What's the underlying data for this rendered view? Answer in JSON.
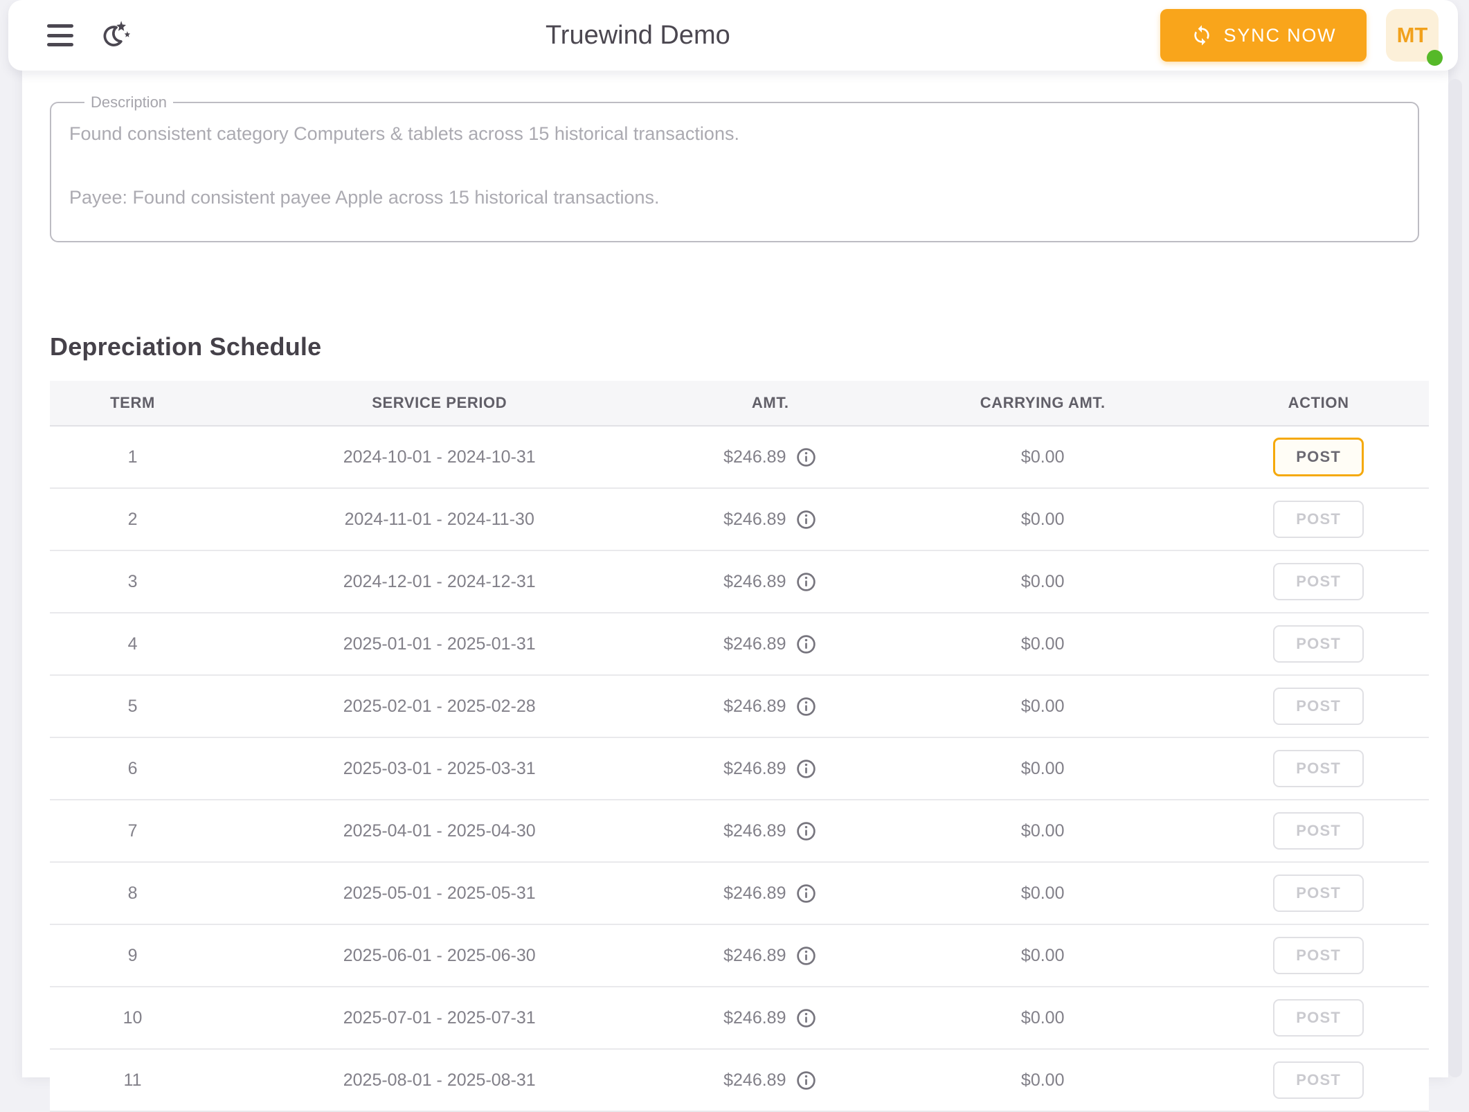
{
  "header": {
    "title": "Truewind Demo",
    "sync_button_label": "SYNC NOW",
    "avatar_initials": "MT"
  },
  "description": {
    "label": "Description",
    "line1": "Found consistent category Computers & tablets across 15 historical transactions.",
    "line2": "Payee: Found consistent payee Apple across 15 historical transactions."
  },
  "schedule": {
    "title": "Depreciation Schedule",
    "columns": {
      "term": "TERM",
      "period": "SERVICE PERIOD",
      "amount": "AMT.",
      "carrying": "CARRYING AMT.",
      "action": "ACTION"
    },
    "rows": [
      {
        "term": "1",
        "period": "2024-10-01 - 2024-10-31",
        "amount": "$246.89",
        "carrying": "$0.00",
        "action": "POST"
      },
      {
        "term": "2",
        "period": "2024-11-01 - 2024-11-30",
        "amount": "$246.89",
        "carrying": "$0.00",
        "action": "POST"
      },
      {
        "term": "3",
        "period": "2024-12-01 - 2024-12-31",
        "amount": "$246.89",
        "carrying": "$0.00",
        "action": "POST"
      },
      {
        "term": "4",
        "period": "2025-01-01 - 2025-01-31",
        "amount": "$246.89",
        "carrying": "$0.00",
        "action": "POST"
      },
      {
        "term": "5",
        "period": "2025-02-01 - 2025-02-28",
        "amount": "$246.89",
        "carrying": "$0.00",
        "action": "POST"
      },
      {
        "term": "6",
        "period": "2025-03-01 - 2025-03-31",
        "amount": "$246.89",
        "carrying": "$0.00",
        "action": "POST"
      },
      {
        "term": "7",
        "period": "2025-04-01 - 2025-04-30",
        "amount": "$246.89",
        "carrying": "$0.00",
        "action": "POST"
      },
      {
        "term": "8",
        "period": "2025-05-01 - 2025-05-31",
        "amount": "$246.89",
        "carrying": "$0.00",
        "action": "POST"
      },
      {
        "term": "9",
        "period": "2025-06-01 - 2025-06-30",
        "amount": "$246.89",
        "carrying": "$0.00",
        "action": "POST"
      },
      {
        "term": "10",
        "period": "2025-07-01 - 2025-07-31",
        "amount": "$246.89",
        "carrying": "$0.00",
        "action": "POST"
      },
      {
        "term": "11",
        "period": "2025-08-01 - 2025-08-31",
        "amount": "$246.89",
        "carrying": "$0.00",
        "action": "POST"
      }
    ]
  },
  "icons": {
    "menu": "hamburger-menu-icon",
    "theme": "moon-stars-icon",
    "sync": "sync-arrows-icon",
    "info": "info-circle-icon"
  },
  "colors": {
    "accent_amber": "#F9A51B",
    "active_border": "#F5A90C",
    "avatar_bg": "#FCF0D9",
    "status_green": "#56B929",
    "page_bg": "#F1F1F5",
    "heading_text": "#454149",
    "cell_text": "#828089",
    "muted_text": "#ABAAB1"
  }
}
